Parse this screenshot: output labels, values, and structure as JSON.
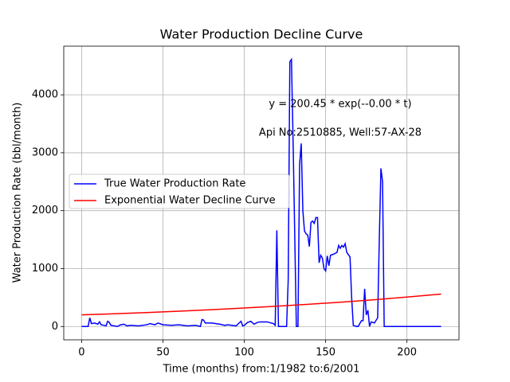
{
  "chart_data": {
    "type": "line",
    "title": "Water Production Decline Curve",
    "x_label": "Time (months) from:1/1982 to:6/2001",
    "y_label": "Water Production Rate (bbl/month)",
    "annotations": [
      "y = 200.45 * exp(--0.00 * t)",
      "Api No:2510885, Well:57-AX-28"
    ],
    "xlim": [
      -11,
      232
    ],
    "ylim": [
      -230,
      4840
    ],
    "xticks": [
      0,
      50,
      100,
      150,
      200
    ],
    "yticks": [
      0,
      1000,
      2000,
      3000,
      4000
    ],
    "grid": true,
    "legend": "center left",
    "series": [
      {
        "name": "True Water Production Rate",
        "color": "#0000ff",
        "x": [
          0,
          2,
          4,
          5,
          6,
          8,
          10,
          11,
          12,
          14,
          15,
          16,
          17,
          18,
          20,
          22,
          24,
          26,
          28,
          30,
          35,
          40,
          42,
          45,
          47,
          50,
          55,
          60,
          65,
          70,
          73,
          74,
          75,
          76,
          80,
          85,
          88,
          90,
          95,
          96,
          98,
          99,
          100,
          102,
          104,
          106,
          108,
          110,
          114,
          118,
          119,
          120,
          121,
          126,
          127,
          128,
          129,
          130,
          131,
          132,
          133,
          134,
          135,
          136,
          137,
          138,
          139,
          140,
          141,
          142,
          143,
          144,
          145,
          146,
          147,
          148,
          149,
          150,
          151,
          152,
          153,
          155,
          157,
          158,
          159,
          160,
          161,
          162,
          163,
          165,
          166,
          167,
          169,
          170,
          172,
          173,
          174,
          175,
          176,
          177,
          178,
          180,
          182,
          183,
          184,
          185,
          186,
          190,
          200,
          221
        ],
        "values": [
          0,
          0,
          0,
          150,
          50,
          60,
          40,
          80,
          30,
          20,
          10,
          90,
          70,
          20,
          10,
          0,
          30,
          40,
          10,
          20,
          10,
          30,
          50,
          30,
          60,
          30,
          20,
          30,
          10,
          20,
          0,
          120,
          110,
          60,
          60,
          40,
          20,
          30,
          10,
          40,
          90,
          10,
          20,
          70,
          90,
          40,
          70,
          80,
          80,
          50,
          20,
          1660,
          0,
          0,
          800,
          4570,
          4610,
          3200,
          1600,
          0,
          0,
          2800,
          3160,
          2000,
          1650,
          1600,
          1580,
          1380,
          1800,
          1820,
          1780,
          1880,
          1880,
          1100,
          1230,
          1180,
          1000,
          960,
          1220,
          1050,
          1230,
          1250,
          1280,
          1400,
          1350,
          1400,
          1370,
          1430,
          1280,
          1200,
          500,
          20,
          0,
          0,
          100,
          100,
          650,
          200,
          280,
          0,
          80,
          60,
          150,
          1500,
          2730,
          2500,
          0,
          0,
          0,
          0
        ]
      },
      {
        "name": "Exponential Water Decline Curve",
        "color": "#ff0000",
        "x": [
          0,
          20,
          40,
          60,
          80,
          100,
          120,
          140,
          160,
          180,
          200,
          221
        ],
        "values": [
          200.45,
          219.9,
          241.4,
          264.9,
          290.7,
          319.0,
          350.1,
          384.2,
          421.6,
          462.7,
          507.8,
          559.8
        ]
      }
    ]
  }
}
